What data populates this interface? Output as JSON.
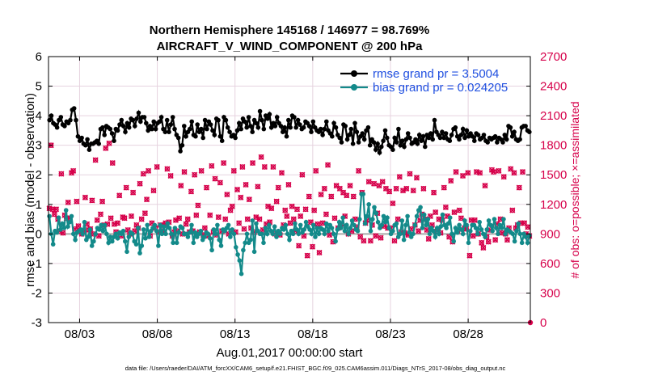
{
  "chart_data": {
    "type": "line",
    "title": "Northern Hemisphere 145168 / 146977 = 98.769%",
    "subtitle": "AIRCRAFT_V_WIND_COMPONENT @ 200 hPa",
    "xlabel": "Aug.01,2017 00:00:00 start",
    "ylabel": "rmse and bias (model - observation)",
    "ylabel_right": "# of obs: o=possible; ×=assimilated",
    "ylim": [
      -3,
      6
    ],
    "ylim_right": [
      0,
      2700
    ],
    "y_ticks": [
      "-3",
      "-2",
      "-1",
      "0",
      "1",
      "2",
      "3",
      "4",
      "5",
      "6"
    ],
    "y_ticks_right": [
      "0",
      "300",
      "600",
      "900",
      "1200",
      "1500",
      "1800",
      "2100",
      "2400",
      "2700"
    ],
    "x_ticks": [
      "08/03",
      "08/08",
      "08/13",
      "08/18",
      "08/23",
      "08/28"
    ],
    "x_tick_days": [
      3,
      8,
      13,
      18,
      23,
      28
    ],
    "x_range_days": [
      1.0,
      32.0
    ],
    "footnote": "data file: /Users/raeder/DAI/ATM_forcXX/CAM6_setup/f.e21.FHIST_BGC.f09_025.CAM6assim.011/Diags_NTrS_2017-08/obs_diag_output.nc",
    "legend": [
      "rmse grand pr = 3.5004",
      "bias grand pr = 0.024205"
    ],
    "colors": {
      "rmse": "#000000",
      "bias": "#138a8a",
      "obs": "#d6004a",
      "zero": "#aaaaaa",
      "grid": "#e6d3df"
    },
    "series": [
      {
        "name": "rmse",
        "values": [
          3.85,
          4.0,
          3.75,
          3.7,
          3.6,
          3.85,
          3.95,
          3.7,
          3.65,
          3.8,
          3.75,
          3.85,
          4.2,
          4.25,
          3.85,
          3.3,
          3.15,
          3.25,
          3.05,
          3.0,
          3.2,
          2.85,
          3.05,
          3.05,
          3.1,
          3.15,
          3.05,
          3.55,
          3.6,
          3.35,
          3.65,
          3.6,
          3.55,
          3.4,
          3.15,
          3.55,
          3.5,
          3.7,
          3.85,
          3.65,
          3.45,
          3.75,
          3.6,
          3.9,
          3.85,
          3.65,
          3.9,
          4.1,
          3.8,
          3.95,
          3.95,
          3.75,
          3.5,
          3.65,
          3.55,
          3.8,
          3.55,
          3.75,
          3.8,
          3.95,
          3.55,
          3.45,
          3.85,
          3.45,
          3.7,
          3.95,
          3.55,
          3.35,
          3.25,
          2.8,
          3.0,
          3.65,
          3.3,
          3.45,
          3.55,
          3.8,
          3.35,
          3.3,
          3.7,
          3.45,
          3.55,
          3.25,
          3.85,
          3.55,
          3.8,
          3.7,
          3.5,
          3.35,
          3.9,
          3.85,
          3.3,
          3.15,
          3.95,
          3.85,
          3.6,
          3.45,
          3.3,
          3.35,
          3.25,
          3.5,
          3.75,
          3.55,
          3.9,
          3.8,
          3.6,
          3.95,
          3.65,
          3.45,
          3.85,
          3.75,
          3.6,
          4.15,
          3.85,
          3.55,
          4.0,
          3.9,
          4.05,
          3.6,
          3.75,
          3.65,
          3.95,
          3.75,
          3.65,
          3.45,
          3.6,
          3.3,
          3.85,
          3.6,
          4.0,
          3.95,
          3.6,
          3.85,
          3.7,
          3.55,
          3.6,
          3.8,
          3.75,
          3.65,
          3.45,
          3.8,
          3.6,
          3.5,
          3.45,
          3.55,
          3.35,
          3.55,
          3.8,
          3.5,
          3.4,
          3.3,
          3.75,
          3.6,
          3.35,
          3.25,
          3.1,
          3.7,
          3.65,
          3.2,
          3.35,
          3.55,
          3.05,
          3.75,
          3.45,
          3.1,
          3.3,
          3.4,
          3.2,
          3.5,
          3.6,
          3.0,
          3.2,
          3.1,
          2.85,
          3.05,
          2.75,
          2.95,
          3.15,
          3.5,
          3.25,
          3.0,
          2.95,
          2.85,
          3.25,
          3.1,
          3.55,
          3.0,
          3.15,
          2.95,
          3.2,
          3.4,
          3.25,
          3.05,
          3.1,
          3.2,
          3.05,
          3.35,
          3.15,
          3.3,
          2.95,
          3.35,
          3.25,
          3.4,
          3.2,
          3.85,
          3.45,
          3.35,
          3.25,
          3.45,
          3.25,
          3.4,
          3.2,
          3.15,
          3.35,
          3.55,
          3.6,
          3.3,
          3.2,
          3.35,
          3.55,
          3.25,
          3.5,
          3.3,
          3.4,
          3.3,
          3.15,
          3.4,
          3.35,
          3.2,
          3.25,
          3.35,
          3.15,
          3.1,
          3.25,
          3.2,
          3.25,
          3.3,
          3.1,
          3.25,
          3.2,
          3.1,
          3.35,
          3.2,
          3.65,
          3.6,
          3.3,
          3.45,
          3.2,
          3.15,
          3.2,
          3.6,
          3.65,
          3.65,
          3.5,
          3.45
        ]
      },
      {
        "name": "bias",
        "values": [
          0.6,
          0.0,
          -0.35,
          0.1,
          0.05,
          0.55,
          0.15,
          0.35,
          0.2,
          0.8,
          0.25,
          0.4,
          0.6,
          0.0,
          -0.2,
          0.05,
          0.1,
          0.15,
          0.0,
          0.4,
          -0.2,
          -0.1,
          0.15,
          -0.4,
          -0.25,
          0.0,
          0.2,
          0.15,
          0.3,
          0.1,
          0.3,
          0.0,
          -0.3,
          -0.1,
          -0.25,
          -0.1,
          0.0,
          -0.15,
          0.05,
          0.0,
          0.1,
          -0.25,
          -0.6,
          -0.1,
          0.05,
          0.0,
          -0.25,
          -0.35,
          0.2,
          -0.65,
          -0.4,
          0.15,
          -0.15,
          0.3,
          -0.1,
          0.1,
          0.2,
          0.3,
          0.1,
          -0.4,
          0.3,
          0.0,
          0.25,
          0.0,
          0.35,
          0.2,
          0.0,
          -0.3,
          0.2,
          -0.3,
          0.05,
          0.25,
          0.2,
          0.0,
          0.0,
          -0.1,
          0.05,
          0.3,
          -0.3,
          0.05,
          -0.1,
          0.0,
          0.1,
          -0.2,
          -0.1,
          0.05,
          0.0,
          -0.15,
          -0.55,
          0.15,
          0.0,
          0.3,
          -0.2,
          -0.4,
          0.15,
          0.1,
          0.2,
          0.3,
          -0.1,
          0.15,
          0.0,
          -0.45,
          -0.7,
          -0.9,
          -1.35,
          -0.55,
          -0.3,
          0.0,
          -0.3,
          -0.2,
          0.45,
          -0.6,
          0.35,
          0.1,
          0.0,
          0.0,
          -0.3,
          0.2,
          0.0,
          0.3,
          0.1,
          0.0,
          0.25,
          -0.1,
          0.1,
          0.0,
          0.2,
          0.15,
          0.3,
          0.0,
          -0.2,
          0.1,
          0.0,
          0.35,
          0.15,
          0.0,
          0.3,
          0.05,
          0.15,
          0.4,
          0.25,
          0.15,
          0.0,
          0.3,
          -0.1,
          0.2,
          0.0,
          0.2,
          0.15,
          0.0,
          0.35,
          0.1,
          0.3,
          0.2,
          0.0,
          -0.25,
          0.15,
          0.4,
          0.2,
          0.55,
          0.1,
          0.3,
          0.0,
          0.2,
          0.45,
          0.3,
          0.15,
          0.1,
          0.5,
          1.35,
          1.35,
          0.35,
          0.6,
          1.0,
          0.1,
          0.5,
          0.9,
          0.7,
          0.4,
          0.2,
          0.3,
          0.6,
          0.4,
          0.55,
          0.2,
          0.0,
          0.1,
          0.3,
          0.35,
          -0.1,
          0.0,
          0.45,
          -0.2,
          0.3,
          0.6,
          0.05,
          -0.1,
          0.0,
          0.3,
          0.6,
          0.8,
          0.9,
          0.2,
          0.65,
          0.3,
          0.5,
          0.0,
          0.2,
          0.1,
          -0.1,
          0.2,
          0.0,
          0.25,
          0.65,
          0.3,
          0.2,
          0.35,
          0.55,
          0.0,
          -0.25,
          0.2,
          0.05,
          0.3,
          0.15,
          0.0,
          0.45,
          0.3,
          -0.3,
          0.1,
          0.3,
          0.3,
          0.2,
          0.0,
          0.4,
          0.15,
          0.0,
          -0.1,
          0.15,
          0.45,
          0.3,
          0.1,
          0.5,
          0.2,
          0.0,
          0.3,
          0.2,
          0.5,
          0.0,
          0.15,
          0.1,
          0.05,
          0.0,
          -0.25,
          0.1,
          0.35,
          0.0,
          -0.3,
          0.0,
          -0.1,
          -0.3,
          -0.05
        ]
      },
      {
        "name": "obs",
        "values": [
          1160,
          1800,
          1150,
          1100,
          1150,
          1050,
          930,
          1510,
          910,
          1090,
          1060,
          1220,
          1060,
          1520,
          1540,
          950,
          1230,
          980,
          930,
          900,
          920,
          1270,
          1000,
          940,
          950,
          1240,
          900,
          1650,
          1040,
          880,
          1100,
          1230,
          990,
          1770,
          1000,
          1820,
          1060,
          1620,
          1000,
          920,
          1010,
          1290,
          880,
          1070,
          1060,
          1370,
          940,
          900,
          1080,
          1320,
          930,
          990,
          960,
          1410,
          1050,
          1510,
          1110,
          1250,
          1540,
          880,
          1010,
          1340,
          960,
          1580,
          920,
          990,
          930,
          990,
          1010,
          1560,
          1020,
          1490,
          880,
          920,
          1040,
          930,
          1060,
          1390,
          900,
          1530,
          1000,
          1050,
          920,
          1330,
          930,
          1500,
          1090,
          1190,
          920,
          1540,
          890,
          960,
          1370,
          880,
          1090,
          1590,
          920,
          1460,
          890,
          1070,
          1420,
          930,
          1620,
          1050,
          1300,
          900,
          1140,
          1180,
          1540,
          920,
          1350,
          1010,
          1270,
          1580,
          950,
          1400,
          1050,
          1250,
          960,
          1620,
          920,
          1070,
          1380,
          1050,
          1680,
          940,
          1580,
          1000,
          1180,
          1020,
          1160,
          1580,
          900,
          1230,
          1370,
          890,
          1520,
          990,
          1140,
          1080,
          1400,
          1010,
          1180,
          1050,
          930,
          1150,
          780,
          1080,
          1500,
          880,
          1150,
          680,
          1280,
          1020,
          770,
          1140,
          1540,
          1000,
          710,
          1300,
          1010,
          1360,
          1100,
          1600,
          890,
          1280,
          820,
          1060,
          1390,
          960,
          1360,
          1000,
          1320,
          1080,
          1290,
          900,
          1390,
          930,
          1280,
          1050,
          970,
          1540,
          870,
          1320,
          830,
          1010,
          1040,
          1430,
          830,
          990,
          1410,
          880,
          1110,
          1390,
          860,
          1430,
          980,
          1360,
          960,
          1330,
          960,
          1210,
          830,
          1360,
          1050,
          1480,
          920,
          1340,
          910,
          1360,
          890,
          1510,
          950,
          1340,
          990,
          1470,
          930,
          1040,
          1100,
          1360,
          1050,
          940,
          850,
          1080,
          990,
          1320,
          1120,
          930,
          1050,
          910,
          1040,
          1370,
          1170,
          1080,
          870,
          1440,
          820,
          1120,
          1530,
          930,
          1140,
          1060,
          1490,
          960,
          950,
          1520,
          680,
          1040,
          880,
          1040,
          1530,
          900,
          1520,
          810,
          760,
          1390,
          870,
          820,
          940,
          1550,
          1530,
          840,
          1000,
          1540,
          1050,
          910,
          1480,
          900,
          840,
          960,
          1560,
          1140,
          1520,
          960,
          990,
          1370,
          1010,
          1530,
          1010,
          900,
          970,
          880
        ]
      }
    ]
  }
}
